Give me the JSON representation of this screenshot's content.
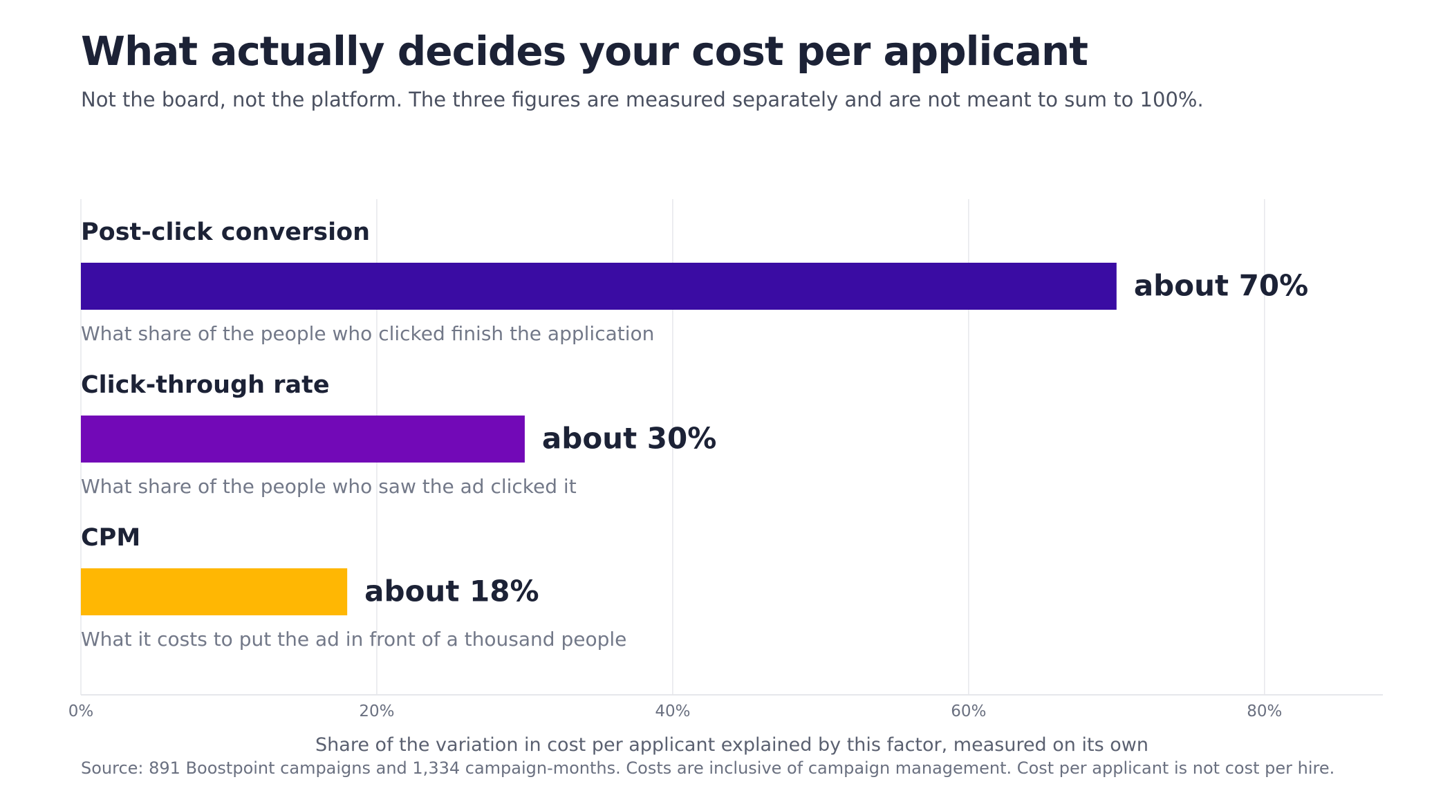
{
  "header": {
    "title": "What actually decides your cost per applicant",
    "subtitle": "Not the board, not the platform. The three figures are measured separately and are not meant to sum to 100%."
  },
  "chart_data": {
    "type": "bar",
    "orientation": "horizontal",
    "categories": [
      "Post-click conversion",
      "Click-through rate",
      "CPM"
    ],
    "values": [
      70,
      30,
      18
    ],
    "value_labels": [
      "about 70%",
      "about 30%",
      "about 18%"
    ],
    "descriptions": [
      "What share of the people who clicked finish the application",
      "What share of the people who saw the ad clicked it",
      "What it costs to put the ad in front of a thousand people"
    ],
    "colors": [
      "#3a0ca3",
      "#7209b7",
      "#ffb703"
    ],
    "xlim": [
      0,
      88
    ],
    "x_ticks": [
      0,
      20,
      40,
      60,
      80
    ],
    "x_tick_labels": [
      "0%",
      "20%",
      "40%",
      "60%",
      "80%"
    ],
    "xlabel": "Share of the variation in cost per applicant explained by this factor, measured on its own",
    "grid": "vertical"
  },
  "footer": {
    "source": "Source: 891 Boostpoint campaigns and 1,334 campaign-months. Costs are inclusive of campaign management. Cost per applicant is not cost per hire."
  }
}
